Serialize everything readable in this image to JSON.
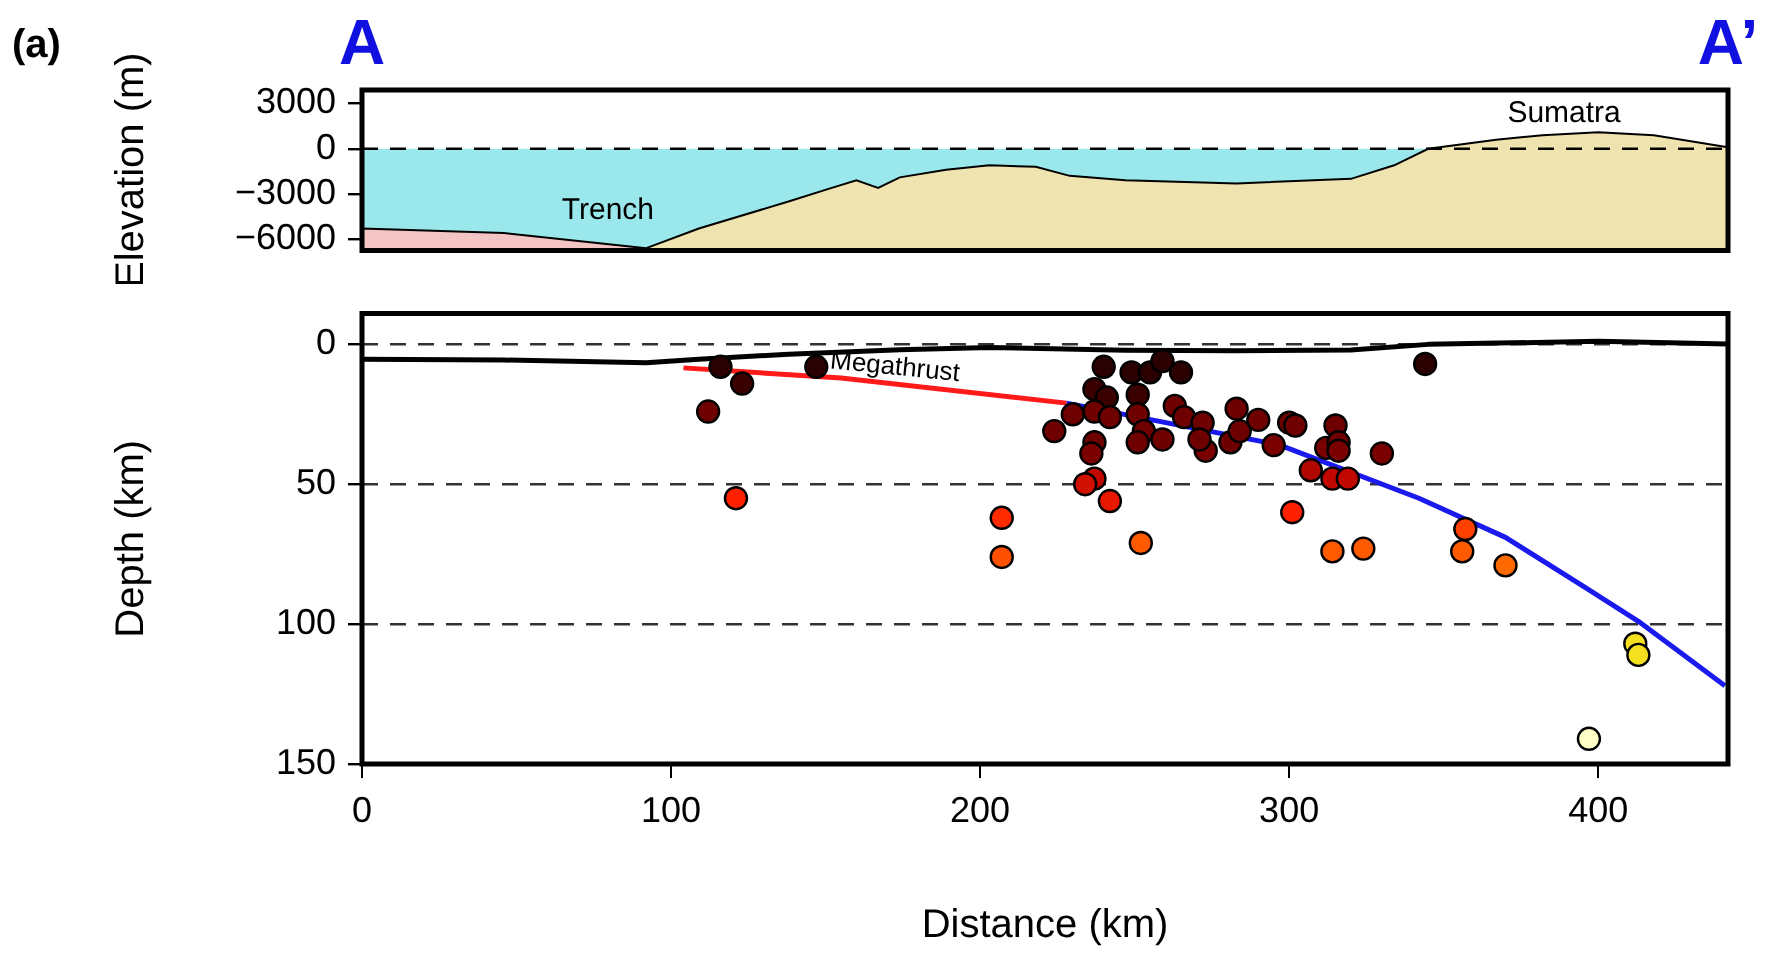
{
  "chart_data": [
    {
      "type": "area",
      "title": "(a)",
      "ylabel": "Elevation (m)",
      "xlim": [
        0,
        442
      ],
      "ylim": [
        -6750,
        3900
      ],
      "yticks": [
        3000,
        0,
        {
          "value": -3000,
          "label": "−3000"
        },
        {
          "value": -6000,
          "label": "−6000"
        }
      ],
      "tick_labels": "y",
      "grid": false,
      "legend": false,
      "ref_lines": [
        {
          "axis": "y",
          "value": 0,
          "line_style": "dashed",
          "color": "#000000"
        }
      ],
      "bands": [
        {
          "axis": "y",
          "from": -6750,
          "to": 0,
          "color": "#9be8ec"
        }
      ],
      "annotations": [
        "A",
        "A’",
        "Trench",
        "Sumatra"
      ],
      "series": [
        {
          "color": "#efe3b0",
          "x": [
            92,
            109,
            138,
            152,
            160,
            167,
            174,
            189,
            203,
            218,
            229,
            247,
            283,
            320,
            334,
            345,
            367,
            382,
            400,
            418,
            442,
            442
          ],
          "values": [
            -6600,
            -5300,
            -3500,
            -2600,
            -2100,
            -2600,
            -1900,
            -1400,
            -1100,
            -1200,
            -1800,
            -2100,
            -2300,
            -2000,
            -1100,
            0,
            600,
            900,
            1100,
            900,
            100,
            -6750
          ]
        },
        {
          "color": "#f2c4c4",
          "x": [
            0,
            0,
            46,
            92
          ],
          "values": [
            -6750,
            -5300,
            -5600,
            -6600
          ]
        }
      ]
    },
    {
      "type": "scatter",
      "xlabel": "Distance (km)",
      "ylabel": "Depth (km)",
      "xlim": [
        0,
        442
      ],
      "ylim": [
        150,
        -11
      ],
      "xticks": [
        0,
        100,
        200,
        300,
        400
      ],
      "yticks": [
        0,
        50,
        100,
        150
      ],
      "grid": "y",
      "legend": false,
      "annotations": [
        {
          "text": "Megathrust",
          "x": 155,
          "y": 12
        }
      ],
      "series": [
        {
          "type": "line",
          "color": "#000000",
          "x": [
            0,
            46,
            92,
            109,
            138,
            174,
            203,
            247,
            283,
            320,
            345,
            400,
            442
          ],
          "values": [
            5.3,
            5.6,
            6.6,
            5.3,
            3.5,
            1.9,
            1.1,
            2.1,
            2.3,
            2.0,
            0,
            -1.1,
            -0.1
          ]
        },
        {
          "type": "line",
          "color": "#ff1a1a",
          "x": [
            104,
            155,
            228
          ],
          "values": [
            8.4,
            12,
            21
          ]
        },
        {
          "type": "line",
          "color": "#1a1aee",
          "x": [
            228,
            297,
            342,
            370,
            396,
            413,
            441
          ],
          "values": [
            21,
            36,
            55,
            69,
            87,
            99,
            122
          ]
        },
        {
          "marker": "circle",
          "x": [
            116,
            123,
            112,
            121,
            147,
            344,
            240,
            249,
            255,
            259,
            265,
            237,
            241,
            251,
            230,
            237,
            242,
            224,
            237,
            236,
            251,
            253,
            251,
            259,
            263,
            266,
            272,
            273,
            271,
            281,
            283,
            284,
            290,
            295,
            300,
            302,
            312,
            315,
            316,
            316,
            330,
            307,
            314,
            319,
            237,
            234,
            242,
            207,
            301,
            207,
            252,
            314,
            324,
            357,
            356,
            370,
            412,
            413,
            397
          ],
          "values": [
            8,
            14,
            24,
            55,
            8,
            7,
            8,
            10,
            10,
            6,
            10,
            16,
            19,
            18,
            25,
            24,
            26,
            31,
            35,
            39,
            25,
            31,
            35,
            34,
            22,
            26,
            28,
            38,
            34,
            35,
            23,
            31,
            27,
            36,
            28,
            29,
            37,
            29,
            35,
            38,
            39,
            45,
            48,
            48,
            48,
            50,
            56,
            62,
            60,
            76,
            71,
            74,
            73,
            66,
            74,
            79,
            107,
            111,
            141
          ],
          "colors": [
            "#2a0000",
            "#3a0000",
            "#6e0000",
            "#ff2000",
            "#2a0000",
            "#2a0000",
            "#2a0000",
            "#2a0000",
            "#2a0000",
            "#2a0000",
            "#2a0000",
            "#3a0000",
            "#3a0000",
            "#3a0000",
            "#6e0000",
            "#6e0000",
            "#6e0000",
            "#6e0000",
            "#6e0000",
            "#7a0000",
            "#6e0000",
            "#6e0000",
            "#6e0000",
            "#6e0000",
            "#6e0000",
            "#6e0000",
            "#6e0000",
            "#7a0000",
            "#6e0000",
            "#6e0000",
            "#6e0000",
            "#6e0000",
            "#6e0000",
            "#7a0000",
            "#6e0000",
            "#6e0000",
            "#7a0000",
            "#6e0000",
            "#6e0000",
            "#7a0000",
            "#7a0000",
            "#b00800",
            "#c00800",
            "#c00800",
            "#c00800",
            "#d01000",
            "#e81800",
            "#ff2a00",
            "#ff2000",
            "#ff5000",
            "#ff5a00",
            "#ff5a00",
            "#ff5a00",
            "#ff4000",
            "#ff5a00",
            "#ff6a00",
            "#f5e020",
            "#f5e020",
            "#ffffc8"
          ]
        }
      ]
    }
  ]
}
